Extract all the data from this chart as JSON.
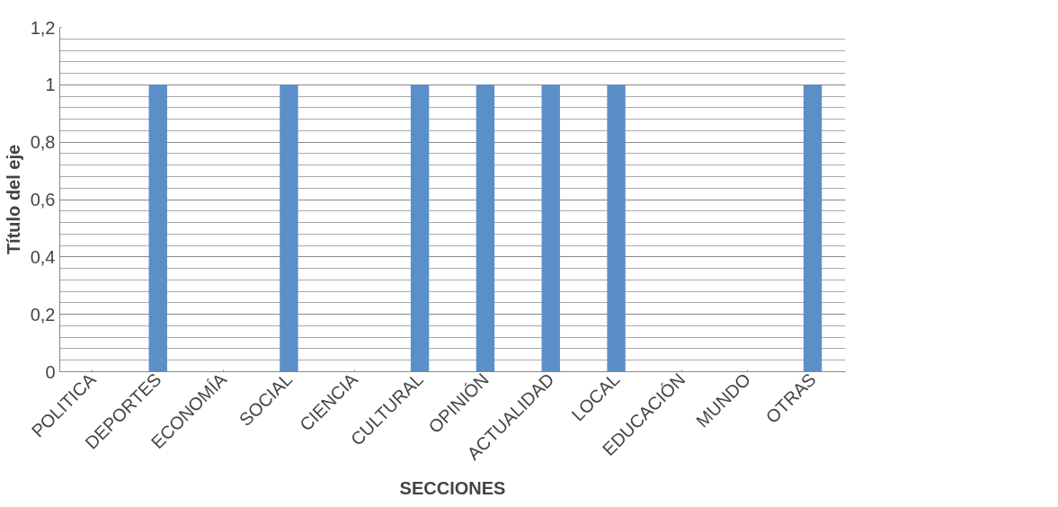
{
  "chart_data": {
    "type": "bar",
    "xlabel": "SECCIONES",
    "ylabel": "Título del eje",
    "categories": [
      "POLITICA",
      "DEPORTES",
      "ECONOMÍA",
      "SOCIAL",
      "CIENCIA",
      "CULTURAL",
      "OPINIÓN",
      "ACTUALIDAD",
      "LOCAL",
      "EDUCACIÓN",
      "MUNDO",
      "OTRAS"
    ],
    "series": [
      {
        "color": "#5b8fc7",
        "values": [
          0,
          1,
          0,
          1,
          0,
          1,
          1,
          1,
          1,
          0,
          0,
          1
        ]
      }
    ],
    "ylim": [
      0,
      1.2
    ],
    "yticks": [
      0,
      {
        "value": 0.2,
        "label": "0,2"
      },
      {
        "value": 0.4,
        "label": "0,4"
      },
      {
        "value": 0.6,
        "label": "0,6"
      },
      {
        "value": 0.8,
        "label": "0,8"
      },
      1,
      {
        "value": 1.2,
        "label": "1,2"
      }
    ],
    "grid": "y"
  }
}
